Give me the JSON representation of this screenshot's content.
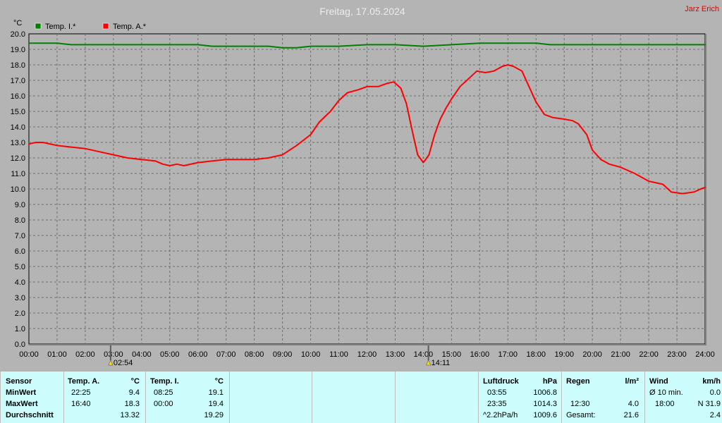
{
  "page": {
    "title": "Freitag, 17.05.2024",
    "author": "Jarz Erich"
  },
  "chart_data": {
    "type": "line",
    "ylabel": "°C",
    "ylim": [
      0,
      20
    ],
    "yticks": [
      "0.0",
      "1.0",
      "2.0",
      "3.0",
      "4.0",
      "5.0",
      "6.0",
      "7.0",
      "8.0",
      "9.0",
      "10.0",
      "11.0",
      "12.0",
      "13.0",
      "14.0",
      "15.0",
      "16.0",
      "17.0",
      "18.0",
      "19.0",
      "20.0"
    ],
    "xlim": [
      0,
      24
    ],
    "xticks": [
      "00:00",
      "01:00",
      "02:00",
      "03:00",
      "04:00",
      "05:00",
      "06:00",
      "07:00",
      "08:00",
      "09:00",
      "10:00",
      "11:00",
      "12:00",
      "13:00",
      "14:00",
      "15:00",
      "16:00",
      "17:00",
      "18:00",
      "19:00",
      "20:00",
      "21:00",
      "22:00",
      "23:00",
      "24:00"
    ],
    "grid": true,
    "legend_position": "top-left",
    "markers": [
      {
        "x": 2.9,
        "label": "02:54"
      },
      {
        "x": 14.18,
        "label": "14:11"
      }
    ],
    "series": [
      {
        "name": "Temp. I.*",
        "color": "#008000",
        "x": [
          0,
          1,
          1.5,
          2,
          3,
          4,
          5,
          6,
          6.5,
          7,
          8,
          8.5,
          9,
          9.5,
          10,
          11,
          12,
          13,
          14,
          15,
          16,
          17,
          18,
          18.5,
          19,
          20,
          21,
          22,
          23,
          24
        ],
        "y": [
          19.4,
          19.4,
          19.3,
          19.3,
          19.3,
          19.3,
          19.3,
          19.3,
          19.2,
          19.2,
          19.2,
          19.2,
          19.1,
          19.1,
          19.2,
          19.2,
          19.3,
          19.3,
          19.2,
          19.3,
          19.4,
          19.4,
          19.4,
          19.3,
          19.3,
          19.3,
          19.3,
          19.3,
          19.3,
          19.3
        ]
      },
      {
        "name": "Temp. A.*",
        "color": "#ff0000",
        "x": [
          0,
          0.25,
          0.5,
          1,
          1.5,
          2,
          2.5,
          3,
          3.5,
          4,
          4.5,
          4.75,
          5,
          5.25,
          5.5,
          6,
          6.5,
          7,
          7.5,
          8,
          8.5,
          9,
          9.5,
          10,
          10.3,
          10.7,
          11,
          11.3,
          11.7,
          12,
          12.4,
          12.7,
          12.95,
          13.2,
          13.4,
          13.6,
          13.8,
          14.0,
          14.2,
          14.4,
          14.6,
          14.8,
          15.0,
          15.3,
          15.6,
          15.9,
          16.2,
          16.5,
          16.8,
          17.0,
          17.2,
          17.5,
          17.7,
          18.0,
          18.3,
          18.6,
          19.0,
          19.3,
          19.5,
          19.8,
          20.0,
          20.3,
          20.6,
          21.0,
          21.5,
          22.0,
          22.5,
          22.8,
          23.2,
          23.6,
          23.85,
          24.0
        ],
        "y": [
          12.9,
          13.0,
          13.0,
          12.8,
          12.7,
          12.6,
          12.4,
          12.2,
          12.0,
          11.9,
          11.8,
          11.6,
          11.5,
          11.6,
          11.5,
          11.7,
          11.8,
          11.9,
          11.9,
          11.9,
          12.0,
          12.2,
          12.8,
          13.5,
          14.3,
          15.0,
          15.7,
          16.2,
          16.4,
          16.6,
          16.6,
          16.8,
          16.9,
          16.5,
          15.5,
          13.8,
          12.2,
          11.7,
          12.2,
          13.5,
          14.5,
          15.2,
          15.8,
          16.6,
          17.1,
          17.6,
          17.5,
          17.6,
          17.9,
          18.0,
          17.9,
          17.6,
          16.8,
          15.6,
          14.8,
          14.6,
          14.5,
          14.4,
          14.2,
          13.5,
          12.5,
          11.9,
          11.6,
          11.4,
          11.0,
          10.5,
          10.3,
          9.8,
          9.7,
          9.8,
          10.0,
          10.1
        ]
      }
    ]
  },
  "stats": {
    "sensor_header": "Sensor",
    "row_labels": [
      "MinWert",
      "MaxWert",
      "Durchschnitt"
    ],
    "temp_a": {
      "header": "Temp. A.",
      "unit": "°C",
      "min_time": "22:25",
      "min_val": "9.4",
      "max_time": "16:40",
      "max_val": "18.3",
      "avg": "13.32"
    },
    "temp_i": {
      "header": "Temp. I.",
      "unit": "°C",
      "min_time": "08:25",
      "min_val": "19.1",
      "max_time": "00:00",
      "max_val": "19.4",
      "avg": "19.29"
    },
    "luftdruck": {
      "header": "Luftdruck",
      "unit": "hPa",
      "r1_time": "03:55",
      "r1_val": "1006.8",
      "r2_time": "23:35",
      "r2_val": "1014.3",
      "r3_time": "^2.2hPa/h",
      "r3_val": "1009.6"
    },
    "regen": {
      "header": "Regen",
      "unit": "l/m²",
      "r2_time": "12:30",
      "r2_val": "4.0",
      "r3_label": "Gesamt:",
      "r3_val": "21.6"
    },
    "wind": {
      "header": "Wind",
      "unit": "km/h",
      "r1_label": "Ø 10 min.",
      "r1_val": "0.0",
      "r2_time": "18:00",
      "r2_val": "N 31.9",
      "r3_val": "2.4"
    }
  }
}
